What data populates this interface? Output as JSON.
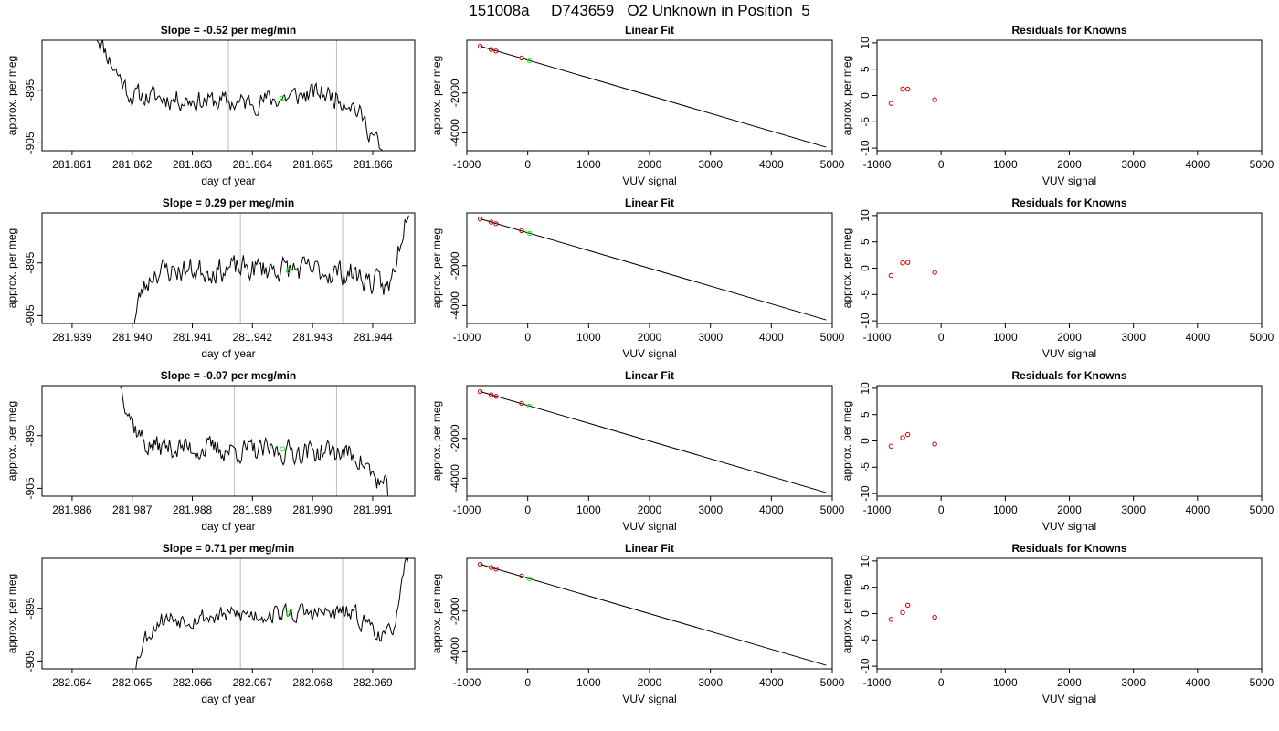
{
  "figure": {
    "title": "151008a     D743659   O2 Unknown in Position  5"
  },
  "colors": {
    "trace": "#000000",
    "marker_lines": "#bebebe",
    "unknown_point": "#00ff00",
    "known_points": "#cc0000",
    "fit_line": "#000000"
  },
  "chart_data": [
    {
      "type": "line",
      "panel": "timeseries",
      "row": 1,
      "title": "Slope =  -0.52  per meg/min",
      "xlabel": "day of year",
      "ylabel": "approx. per meg",
      "xlim": [
        281.8605,
        281.8667
      ],
      "ylim": [
        -906.5,
        -885.5
      ],
      "x_ticks": [
        "281.861",
        "281.862",
        "281.863",
        "281.864",
        "281.865",
        "281.866"
      ],
      "x_tick_values": [
        281.861,
        281.862,
        281.863,
        281.864,
        281.865,
        281.866
      ],
      "y_ticks": [
        "-895",
        "-905"
      ],
      "y_tick_values": [
        -895,
        -905
      ],
      "vlines": [
        281.8636,
        281.8654
      ],
      "unknown_point": {
        "x": 281.8645,
        "y": -896.5
      },
      "trace": {
        "x_start": 281.8614,
        "x_end": 281.8662,
        "n": 220,
        "seed": 11,
        "shape": [
          [
            0,
            -884
          ],
          [
            0.06,
            -890.5
          ],
          [
            0.12,
            -896
          ],
          [
            0.5,
            -897.5
          ],
          [
            0.78,
            -895.5
          ],
          [
            0.88,
            -897
          ],
          [
            0.93,
            -901
          ],
          [
            0.97,
            -904.5
          ],
          [
            1,
            -909
          ]
        ],
        "noise": 1.1
      }
    },
    {
      "type": "line",
      "panel": "fit",
      "row": 1,
      "title": "Linear Fit",
      "xlabel": "VUV signal",
      "ylabel": "approx. per meg",
      "xlim": [
        -1000,
        5000
      ],
      "ylim": [
        -4900,
        650
      ],
      "x_ticks": [
        "-1000",
        "0",
        "1000",
        "2000",
        "3000",
        "4000",
        "5000"
      ],
      "x_tick_values": [
        -1000,
        0,
        1000,
        2000,
        3000,
        4000,
        5000
      ],
      "y_ticks": [
        "-2000",
        "-4000"
      ],
      "y_tick_values": [
        -2000,
        -4000
      ],
      "fit_line": [
        [
          -780,
          350
        ],
        [
          4900,
          -4720
        ]
      ],
      "knowns": [
        [
          -780,
          350
        ],
        [
          -600,
          190
        ],
        [
          -520,
          110
        ],
        [
          -100,
          -240
        ]
      ],
      "unknown": [
        30,
        -380
      ]
    },
    {
      "type": "scatter",
      "panel": "residuals",
      "row": 1,
      "title": "Residuals for Knowns",
      "xlabel": "VUV signal",
      "ylabel": "approx. per meg",
      "xlim": [
        -1000,
        5000
      ],
      "ylim": [
        -10.5,
        10.5
      ],
      "x_ticks": [
        "-1000",
        "0",
        "1000",
        "2000",
        "3000",
        "4000",
        "5000"
      ],
      "x_tick_values": [
        -1000,
        0,
        1000,
        2000,
        3000,
        4000,
        5000
      ],
      "y_ticks": [
        "10",
        "5",
        "0",
        "-5",
        "-10"
      ],
      "y_tick_values": [
        10,
        5,
        0,
        -5,
        -10
      ],
      "points": [
        [
          -780,
          -1.5
        ],
        [
          -600,
          1.2
        ],
        [
          -520,
          1.2
        ],
        [
          -100,
          -0.8
        ]
      ]
    },
    {
      "type": "line",
      "panel": "timeseries",
      "row": 2,
      "title": "Slope =  0.29  per meg/min",
      "xlabel": "day of year",
      "ylabel": "approx. per meg",
      "xlim": [
        281.9385,
        281.9447
      ],
      "ylim": [
        -906.5,
        -885.5
      ],
      "x_ticks": [
        "281.939",
        "281.940",
        "281.941",
        "281.942",
        "281.943",
        "281.944"
      ],
      "x_tick_values": [
        281.939,
        281.94,
        281.941,
        281.942,
        281.943,
        281.944
      ],
      "y_ticks": [
        "-895",
        "-905"
      ],
      "y_tick_values": [
        -895,
        -905
      ],
      "vlines": [
        281.9418,
        281.9435
      ],
      "unknown_point": {
        "x": 281.9426,
        "y": -896.5
      },
      "trace": {
        "x_start": 281.94,
        "x_end": 281.9446,
        "n": 210,
        "seed": 23,
        "shape": [
          [
            0,
            -908
          ],
          [
            0.03,
            -901
          ],
          [
            0.08,
            -896.5
          ],
          [
            0.5,
            -896
          ],
          [
            0.8,
            -897
          ],
          [
            0.88,
            -899
          ],
          [
            0.93,
            -900
          ],
          [
            0.96,
            -893
          ],
          [
            1,
            -883
          ]
        ],
        "noise": 1.3
      }
    },
    {
      "type": "line",
      "panel": "fit",
      "row": 2,
      "title": "Linear Fit",
      "xlabel": "VUV signal",
      "ylabel": "approx. per meg",
      "xlim": [
        -1000,
        5000
      ],
      "ylim": [
        -4900,
        650
      ],
      "x_ticks": [
        "-1000",
        "0",
        "1000",
        "2000",
        "3000",
        "4000",
        "5000"
      ],
      "x_tick_values": [
        -1000,
        0,
        1000,
        2000,
        3000,
        4000,
        5000
      ],
      "y_ticks": [
        "-2000",
        "-4000"
      ],
      "y_tick_values": [
        -2000,
        -4000
      ],
      "fit_line": [
        [
          -780,
          350
        ],
        [
          4900,
          -4720
        ]
      ],
      "knowns": [
        [
          -780,
          350
        ],
        [
          -600,
          190
        ],
        [
          -520,
          110
        ],
        [
          -100,
          -240
        ]
      ],
      "unknown": [
        30,
        -380
      ]
    },
    {
      "type": "scatter",
      "panel": "residuals",
      "row": 2,
      "title": "Residuals for Knowns",
      "xlabel": "VUV signal",
      "ylabel": "approx. per meg",
      "xlim": [
        -1000,
        5000
      ],
      "ylim": [
        -10.5,
        10.5
      ],
      "x_ticks": [
        "-1000",
        "0",
        "1000",
        "2000",
        "3000",
        "4000",
        "5000"
      ],
      "x_tick_values": [
        -1000,
        0,
        1000,
        2000,
        3000,
        4000,
        5000
      ],
      "y_ticks": [
        "10",
        "5",
        "0",
        "-5",
        "-10"
      ],
      "y_tick_values": [
        10,
        5,
        0,
        -5,
        -10
      ],
      "points": [
        [
          -780,
          -1.4
        ],
        [
          -600,
          1.0
        ],
        [
          -520,
          1.1
        ],
        [
          -100,
          -0.8
        ]
      ]
    },
    {
      "type": "line",
      "panel": "timeseries",
      "row": 3,
      "title": "Slope =  -0.07  per meg/min",
      "xlabel": "day of year",
      "ylabel": "approx. per meg",
      "xlim": [
        281.9855,
        281.9917
      ],
      "ylim": [
        -906.5,
        -885.5
      ],
      "x_ticks": [
        "281.986",
        "281.987",
        "281.988",
        "281.989",
        "281.990",
        "281.991"
      ],
      "x_tick_values": [
        281.986,
        281.987,
        281.988,
        281.989,
        281.99,
        281.991
      ],
      "y_ticks": [
        "-895",
        "-905"
      ],
      "y_tick_values": [
        -895,
        -905
      ],
      "vlines": [
        281.9887,
        281.9904
      ],
      "unknown_point": {
        "x": 281.9895,
        "y": -897.5
      },
      "trace": {
        "x_start": 281.9868,
        "x_end": 281.9913,
        "n": 215,
        "seed": 37,
        "shape": [
          [
            0,
            -885
          ],
          [
            0.05,
            -893
          ],
          [
            0.1,
            -897
          ],
          [
            0.5,
            -898
          ],
          [
            0.8,
            -898
          ],
          [
            0.88,
            -899
          ],
          [
            0.94,
            -903
          ],
          [
            0.98,
            -905
          ],
          [
            1,
            -909
          ]
        ],
        "noise": 1.2
      }
    },
    {
      "type": "line",
      "panel": "fit",
      "row": 3,
      "title": "Linear Fit",
      "xlabel": "VUV signal",
      "ylabel": "approx. per meg",
      "xlim": [
        -1000,
        5000
      ],
      "ylim": [
        -4900,
        650
      ],
      "x_ticks": [
        "-1000",
        "0",
        "1000",
        "2000",
        "3000",
        "4000",
        "5000"
      ],
      "x_tick_values": [
        -1000,
        0,
        1000,
        2000,
        3000,
        4000,
        5000
      ],
      "y_ticks": [
        "-2000",
        "-4000"
      ],
      "y_tick_values": [
        -2000,
        -4000
      ],
      "fit_line": [
        [
          -780,
          350
        ],
        [
          4900,
          -4720
        ]
      ],
      "knowns": [
        [
          -780,
          350
        ],
        [
          -600,
          190
        ],
        [
          -520,
          110
        ],
        [
          -100,
          -240
        ]
      ],
      "unknown": [
        30,
        -380
      ]
    },
    {
      "type": "scatter",
      "panel": "residuals",
      "row": 3,
      "title": "Residuals for Knowns",
      "xlabel": "VUV signal",
      "ylabel": "approx. per meg",
      "xlim": [
        -1000,
        5000
      ],
      "ylim": [
        -10.5,
        10.5
      ],
      "x_ticks": [
        "-1000",
        "0",
        "1000",
        "2000",
        "3000",
        "4000",
        "5000"
      ],
      "x_tick_values": [
        -1000,
        0,
        1000,
        2000,
        3000,
        4000,
        5000
      ],
      "y_ticks": [
        "10",
        "5",
        "0",
        "-5",
        "-10"
      ],
      "y_tick_values": [
        10,
        5,
        0,
        -5,
        -10
      ],
      "points": [
        [
          -780,
          -1.0
        ],
        [
          -600,
          0.6
        ],
        [
          -520,
          1.2
        ],
        [
          -100,
          -0.6
        ]
      ]
    },
    {
      "type": "line",
      "panel": "timeseries",
      "row": 4,
      "title": "Slope =  0.71  per meg/min",
      "xlabel": "day of year",
      "ylabel": "approx. per meg",
      "xlim": [
        282.0635,
        282.0697
      ],
      "ylim": [
        -906.5,
        -885.5
      ],
      "x_ticks": [
        "282.064",
        "282.065",
        "282.066",
        "282.067",
        "282.068",
        "282.069"
      ],
      "x_tick_values": [
        282.064,
        282.065,
        282.066,
        282.067,
        282.068,
        282.069
      ],
      "y_ticks": [
        "-895",
        "-905"
      ],
      "y_tick_values": [
        -895,
        -905
      ],
      "vlines": [
        282.0668,
        282.0685
      ],
      "unknown_point": {
        "x": 282.0676,
        "y": -896
      },
      "trace": {
        "x_start": 282.065,
        "x_end": 282.0696,
        "n": 210,
        "seed": 53,
        "shape": [
          [
            0,
            -908
          ],
          [
            0.04,
            -901
          ],
          [
            0.1,
            -897
          ],
          [
            0.5,
            -896
          ],
          [
            0.78,
            -896
          ],
          [
            0.86,
            -898
          ],
          [
            0.92,
            -901
          ],
          [
            0.96,
            -896
          ],
          [
            1,
            -884
          ]
        ],
        "noise": 1.0
      }
    },
    {
      "type": "line",
      "panel": "fit",
      "row": 4,
      "title": "Linear Fit",
      "xlabel": "VUV signal",
      "ylabel": "approx. per meg",
      "xlim": [
        -1000,
        5000
      ],
      "ylim": [
        -4900,
        650
      ],
      "x_ticks": [
        "-1000",
        "0",
        "1000",
        "2000",
        "3000",
        "4000",
        "5000"
      ],
      "x_tick_values": [
        -1000,
        0,
        1000,
        2000,
        3000,
        4000,
        5000
      ],
      "y_ticks": [
        "-2000",
        "-4000"
      ],
      "y_tick_values": [
        -2000,
        -4000
      ],
      "fit_line": [
        [
          -780,
          350
        ],
        [
          4900,
          -4720
        ]
      ],
      "knowns": [
        [
          -780,
          350
        ],
        [
          -600,
          190
        ],
        [
          -520,
          110
        ],
        [
          -100,
          -240
        ]
      ],
      "unknown": [
        30,
        -380
      ]
    },
    {
      "type": "scatter",
      "panel": "residuals",
      "row": 4,
      "title": "Residuals for Knowns",
      "xlabel": "VUV signal",
      "ylabel": "approx. per meg",
      "xlim": [
        -1000,
        5000
      ],
      "ylim": [
        -10.5,
        10.5
      ],
      "x_ticks": [
        "-1000",
        "0",
        "1000",
        "2000",
        "3000",
        "4000",
        "5000"
      ],
      "x_tick_values": [
        -1000,
        0,
        1000,
        2000,
        3000,
        4000,
        5000
      ],
      "y_ticks": [
        "10",
        "5",
        "0",
        "-5",
        "-10"
      ],
      "y_tick_values": [
        10,
        5,
        0,
        -5,
        -10
      ],
      "points": [
        [
          -780,
          -1.1
        ],
        [
          -600,
          0.2
        ],
        [
          -520,
          1.6
        ],
        [
          -100,
          -0.7
        ]
      ]
    }
  ]
}
